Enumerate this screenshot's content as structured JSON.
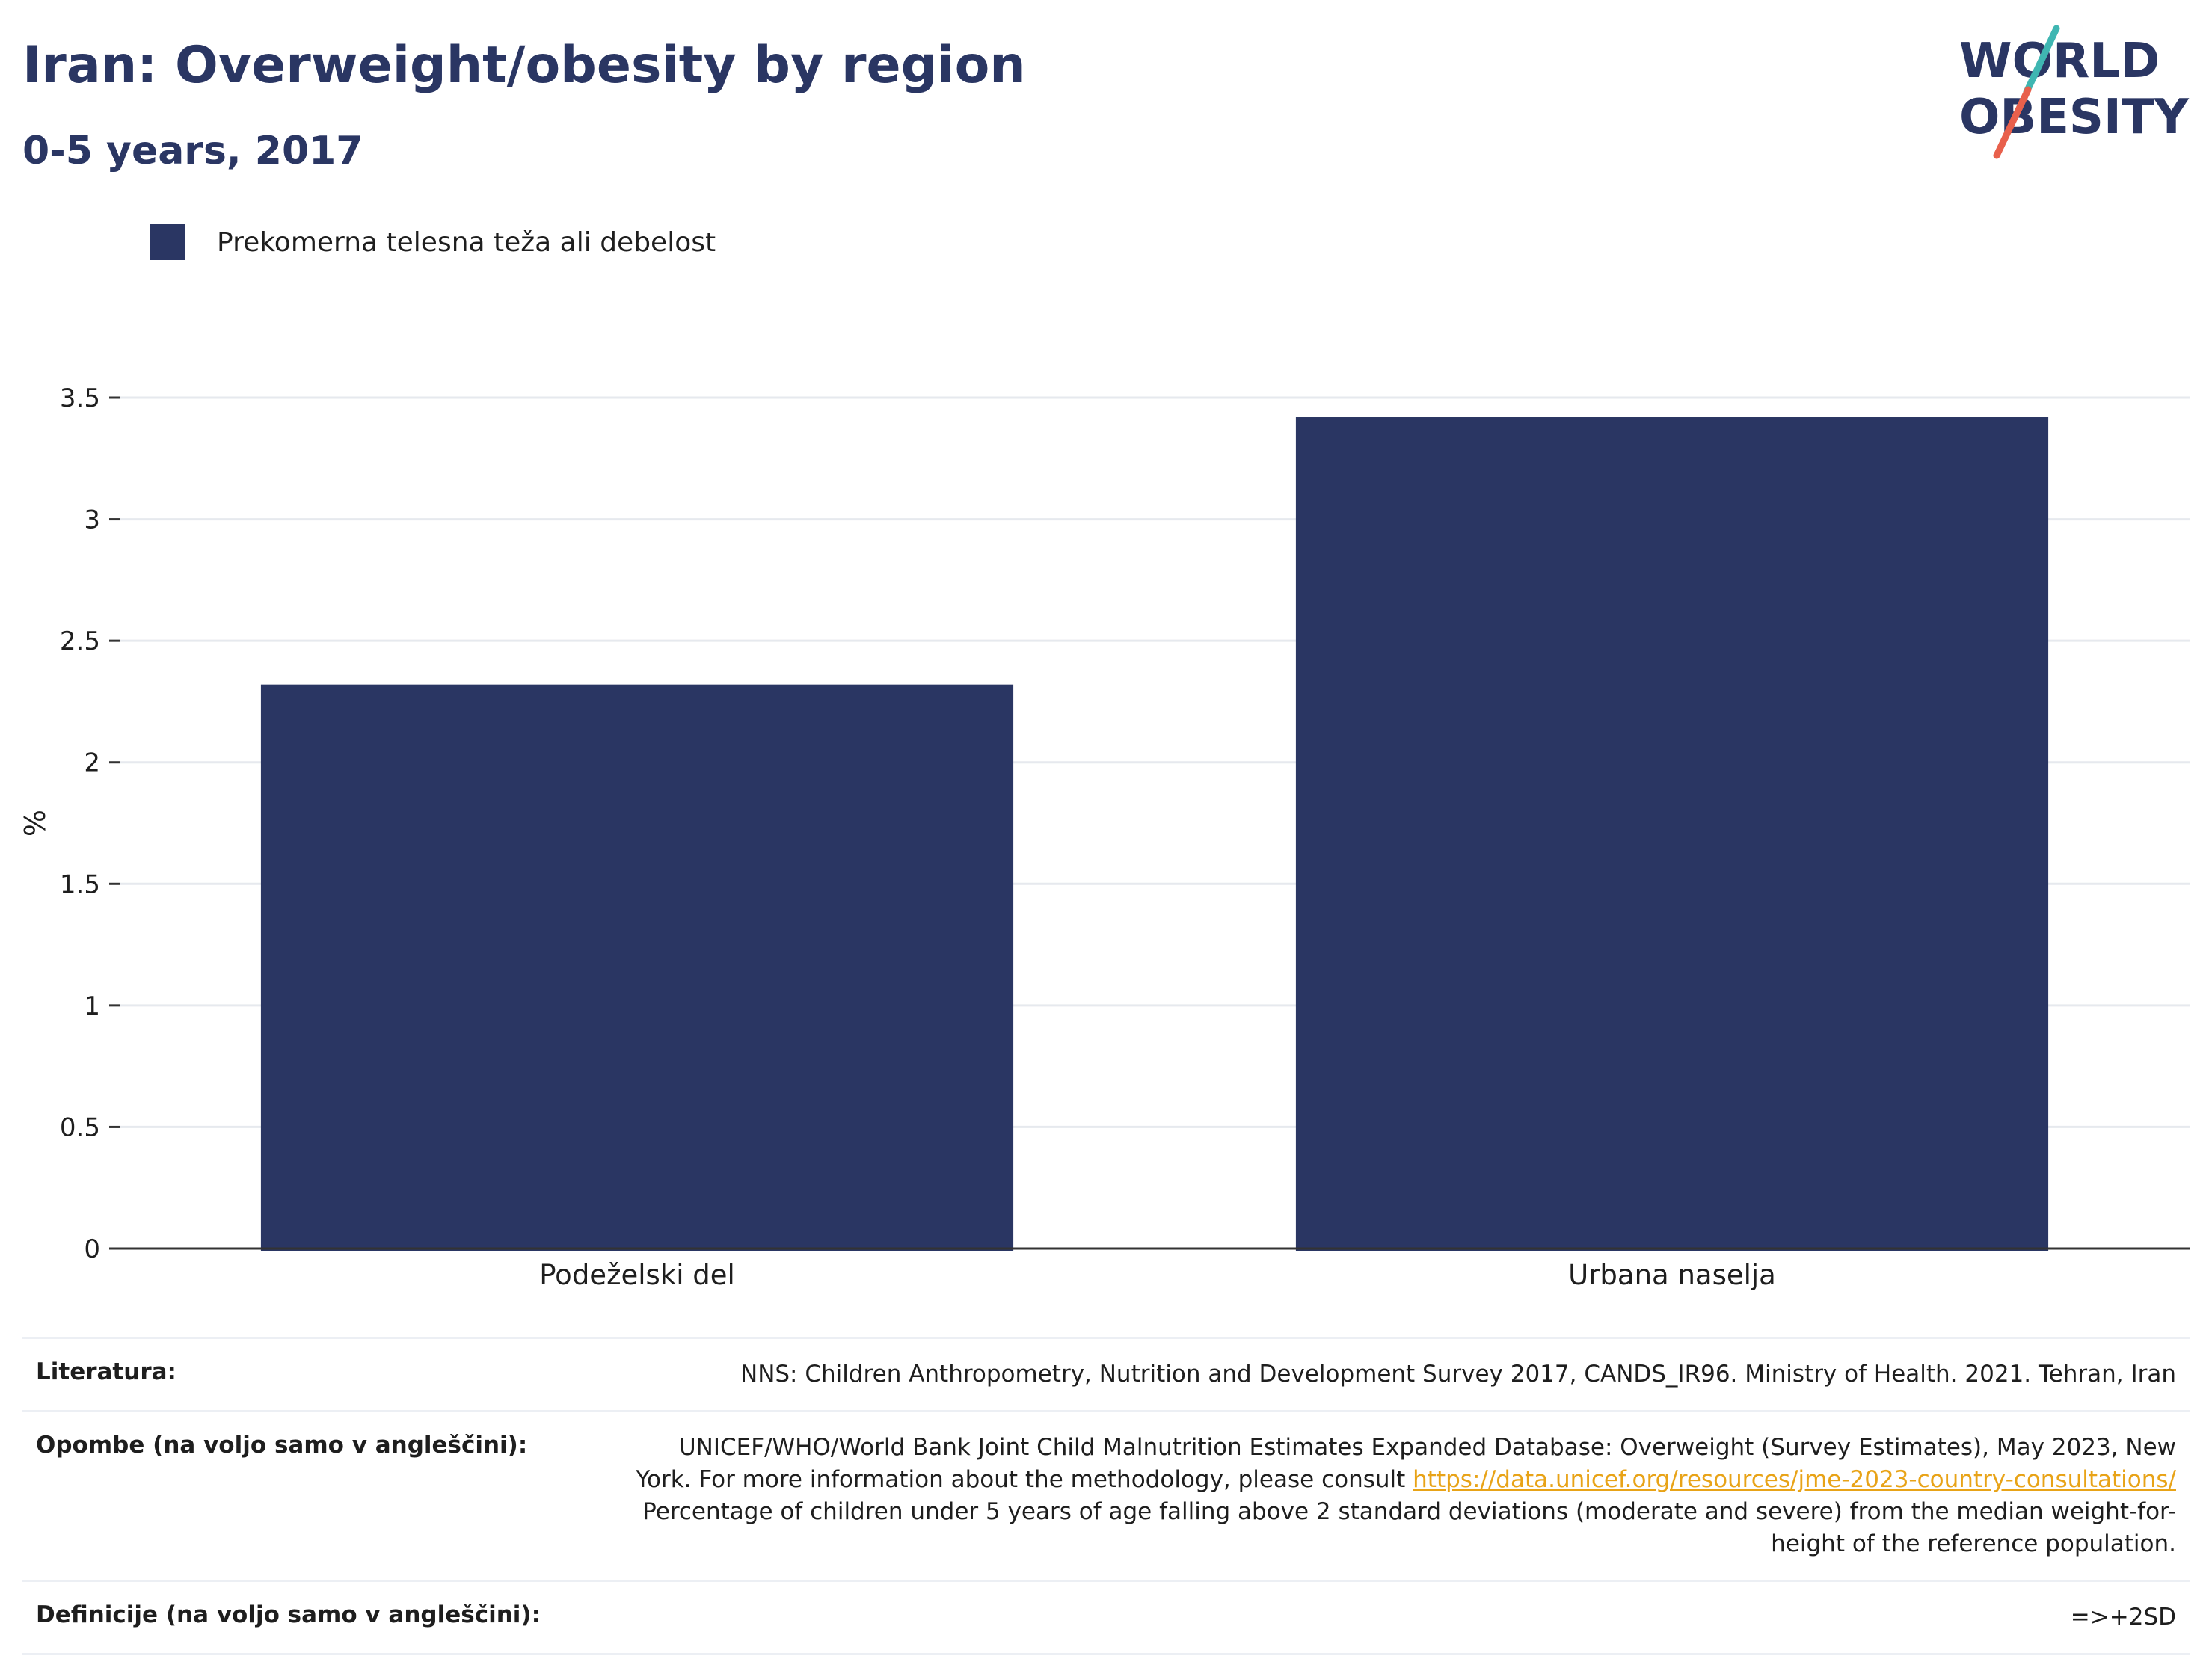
{
  "header": {
    "title": "Iran: Overweight/obesity by region",
    "subtitle": "0-5 years, 2017"
  },
  "logo": {
    "line1": "WORLD",
    "line2": "OBESITY",
    "slash_colors": [
      "#3fb6b2",
      "#e8604c"
    ]
  },
  "colors": {
    "bar": "#2a3663",
    "grid": "#e6e9ee",
    "axis": "#333333",
    "link": "#e8a317"
  },
  "chart_data": {
    "type": "bar",
    "categories": [
      "Podeželski del",
      "Urbana naselja"
    ],
    "series": [
      {
        "name": "Prekomerna telesna teža ali debelost",
        "values": [
          2.32,
          3.42
        ]
      }
    ],
    "ylabel": "%",
    "ylim": [
      0,
      3.5
    ],
    "yticks": [
      0,
      0.5,
      1,
      1.5,
      2,
      2.5,
      3,
      3.5
    ],
    "ytick_labels": [
      "0",
      "0.5",
      "1",
      "1.5",
      "2",
      "2.5",
      "3",
      "3.5"
    ],
    "grid": true,
    "legend_position": "top-left"
  },
  "table": {
    "literature_label": "Literatura:",
    "literature_value": "NNS: Children Anthropometry, Nutrition and Development Survey 2017, CANDS_IR96. Ministry of Health. 2021. Tehran, Iran",
    "notes_label": "Opombe (na voljo samo v angleščini):",
    "notes_line1": "UNICEF/WHO/World Bank Joint Child Malnutrition Estimates Expanded Database: Overweight (Survey Estimates), May 2023, New",
    "notes_line2_prefix": "York. For more information about the methodology, please consult ",
    "notes_link": "https://data.unicef.org/resources/jme-2023-country-consultations/",
    "notes_line3": "Percentage of children under 5 years of age falling above 2 standard deviations (moderate and severe) from the median weight-for-",
    "notes_line4": "height of the reference population.",
    "definitions_label": "Definicije (na voljo samo v angleščini):",
    "definitions_value": "=>+2SD"
  }
}
